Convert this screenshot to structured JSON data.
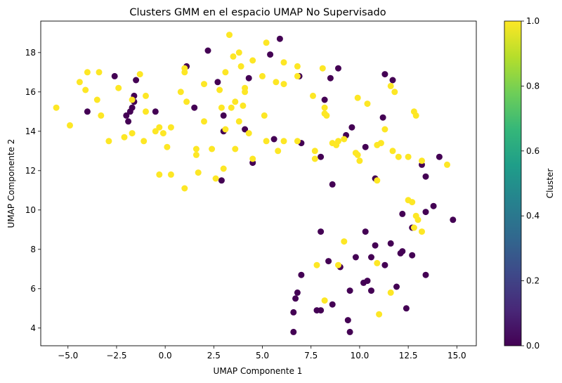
{
  "chart_data": {
    "type": "scatter",
    "title": "Clusters GMM en el espacio UMAP No Supervisado",
    "xlabel": "UMAP Componente 1",
    "ylabel": "UMAP Componente 2",
    "xlim": [
      -6.4,
      16.0
    ],
    "ylim": [
      3.1,
      19.6
    ],
    "xticks": [
      -5.0,
      -2.5,
      0.0,
      2.5,
      5.0,
      7.5,
      10.0,
      12.5,
      15.0
    ],
    "xtick_labels": [
      "−5.0",
      "−2.5",
      "0.0",
      "2.5",
      "5.0",
      "7.5",
      "10.0",
      "12.5",
      "15.0"
    ],
    "yticks": [
      4,
      6,
      8,
      10,
      12,
      14,
      16,
      18
    ],
    "ytick_labels": [
      "4",
      "6",
      "8",
      "10",
      "12",
      "14",
      "16",
      "18"
    ],
    "grid": false,
    "colorbar": {
      "label": "Cluster",
      "min": 0.0,
      "max": 1.0,
      "ticks": [
        0.0,
        0.2,
        0.4,
        0.6,
        0.8,
        1.0
      ],
      "tick_labels": [
        "0.0",
        "0.2",
        "0.4",
        "0.6",
        "0.8",
        "1.0"
      ],
      "colormap": "viridis",
      "stops": [
        "#440154",
        "#482878",
        "#3e4989",
        "#31688e",
        "#26828e",
        "#1f9e89",
        "#35b779",
        "#6ece58",
        "#b5de2b",
        "#fde725"
      ]
    },
    "colors": {
      "cluster_0": "#440154",
      "cluster_1": "#fde725"
    },
    "series": [
      {
        "cluster": 0,
        "points": [
          [
            -4.0,
            15.0
          ],
          [
            -2.6,
            16.8
          ],
          [
            -2.0,
            14.8
          ],
          [
            -1.9,
            14.5
          ],
          [
            -1.8,
            15.0
          ],
          [
            -1.7,
            15.2
          ],
          [
            -1.6,
            15.8
          ],
          [
            -1.5,
            16.6
          ],
          [
            -1.6,
            15.5
          ],
          [
            -0.5,
            15.0
          ],
          [
            1.1,
            17.3
          ],
          [
            1.5,
            15.2
          ],
          [
            2.2,
            18.1
          ],
          [
            2.7,
            16.5
          ],
          [
            3.0,
            14.8
          ],
          [
            3.0,
            14.0
          ],
          [
            2.9,
            11.5
          ],
          [
            4.1,
            14.1
          ],
          [
            4.3,
            16.7
          ],
          [
            4.5,
            12.4
          ],
          [
            5.4,
            17.9
          ],
          [
            5.6,
            13.6
          ],
          [
            5.9,
            18.7
          ],
          [
            6.9,
            16.8
          ],
          [
            7.0,
            13.4
          ],
          [
            8.0,
            12.7
          ],
          [
            8.2,
            15.6
          ],
          [
            8.5,
            16.7
          ],
          [
            8.6,
            11.3
          ],
          [
            8.9,
            17.2
          ],
          [
            9.3,
            13.8
          ],
          [
            9.6,
            14.2
          ],
          [
            10.3,
            13.2
          ],
          [
            10.8,
            11.6
          ],
          [
            11.2,
            14.7
          ],
          [
            11.3,
            16.9
          ],
          [
            11.7,
            16.6
          ],
          [
            12.2,
            9.8
          ],
          [
            12.7,
            9.1
          ],
          [
            13.2,
            12.3
          ],
          [
            13.4,
            11.7
          ],
          [
            13.4,
            9.9
          ],
          [
            13.8,
            10.2
          ],
          [
            14.1,
            12.7
          ],
          [
            14.8,
            9.5
          ],
          [
            6.6,
            3.8
          ],
          [
            6.6,
            4.8
          ],
          [
            6.7,
            5.5
          ],
          [
            6.8,
            5.8
          ],
          [
            7.0,
            6.7
          ],
          [
            7.8,
            4.9
          ],
          [
            8.0,
            4.9
          ],
          [
            8.0,
            8.9
          ],
          [
            8.4,
            7.4
          ],
          [
            8.6,
            5.2
          ],
          [
            9.0,
            7.1
          ],
          [
            9.4,
            4.4
          ],
          [
            9.5,
            3.8
          ],
          [
            9.5,
            5.9
          ],
          [
            9.8,
            7.6
          ],
          [
            10.2,
            6.3
          ],
          [
            10.3,
            8.9
          ],
          [
            10.4,
            6.4
          ],
          [
            10.6,
            7.6
          ],
          [
            10.6,
            5.9
          ],
          [
            10.8,
            8.2
          ],
          [
            11.3,
            7.2
          ],
          [
            11.6,
            8.3
          ],
          [
            11.9,
            6.1
          ],
          [
            12.1,
            7.8
          ],
          [
            12.2,
            7.9
          ],
          [
            12.4,
            5.0
          ],
          [
            12.7,
            7.7
          ],
          [
            13.4,
            6.7
          ]
        ]
      },
      {
        "cluster": 1,
        "points": [
          [
            -5.6,
            15.2
          ],
          [
            -4.9,
            14.3
          ],
          [
            -4.4,
            16.5
          ],
          [
            -4.0,
            17.0
          ],
          [
            -4.1,
            16.1
          ],
          [
            -3.4,
            17.0
          ],
          [
            -3.5,
            15.6
          ],
          [
            -3.3,
            14.8
          ],
          [
            -2.9,
            13.5
          ],
          [
            -2.4,
            16.2
          ],
          [
            -2.1,
            13.7
          ],
          [
            -1.7,
            15.6
          ],
          [
            -1.7,
            13.9
          ],
          [
            -1.3,
            16.9
          ],
          [
            -1.0,
            15.8
          ],
          [
            -1.0,
            15.0
          ],
          [
            -1.1,
            13.5
          ],
          [
            -0.5,
            14.0
          ],
          [
            -0.3,
            14.2
          ],
          [
            -0.3,
            11.8
          ],
          [
            -0.1,
            13.9
          ],
          [
            0.1,
            13.2
          ],
          [
            0.3,
            11.8
          ],
          [
            0.3,
            14.2
          ],
          [
            0.8,
            16.0
          ],
          [
            1.0,
            17.0
          ],
          [
            1.0,
            17.2
          ],
          [
            1.0,
            11.1
          ],
          [
            1.1,
            15.5
          ],
          [
            1.6,
            13.1
          ],
          [
            1.6,
            12.8
          ],
          [
            1.7,
            11.9
          ],
          [
            2.0,
            14.5
          ],
          [
            2.0,
            16.4
          ],
          [
            2.4,
            13.1
          ],
          [
            2.6,
            11.6
          ],
          [
            2.8,
            16.1
          ],
          [
            2.9,
            15.2
          ],
          [
            3.1,
            17.0
          ],
          [
            3.0,
            12.1
          ],
          [
            3.1,
            14.1
          ],
          [
            3.3,
            18.9
          ],
          [
            3.4,
            15.2
          ],
          [
            3.5,
            17.8
          ],
          [
            3.6,
            15.5
          ],
          [
            3.6,
            13.1
          ],
          [
            3.8,
            18.0
          ],
          [
            3.8,
            14.5
          ],
          [
            3.9,
            17.3
          ],
          [
            4.0,
            15.3
          ],
          [
            4.1,
            16.0
          ],
          [
            4.1,
            16.2
          ],
          [
            4.3,
            13.9
          ],
          [
            4.5,
            17.6
          ],
          [
            4.5,
            12.6
          ],
          [
            5.0,
            16.8
          ],
          [
            5.2,
            18.5
          ],
          [
            5.1,
            14.8
          ],
          [
            5.2,
            13.5
          ],
          [
            5.7,
            16.5
          ],
          [
            5.8,
            13.0
          ],
          [
            6.1,
            17.5
          ],
          [
            6.1,
            16.4
          ],
          [
            6.1,
            13.5
          ],
          [
            6.8,
            16.8
          ],
          [
            6.8,
            17.3
          ],
          [
            6.8,
            13.5
          ],
          [
            7.6,
            15.8
          ],
          [
            7.7,
            13.0
          ],
          [
            7.7,
            12.6
          ],
          [
            8.1,
            17.2
          ],
          [
            8.2,
            15.2
          ],
          [
            8.2,
            14.9
          ],
          [
            8.3,
            14.8
          ],
          [
            8.6,
            13.4
          ],
          [
            8.8,
            13.3
          ],
          [
            8.9,
            13.5
          ],
          [
            9.2,
            13.6
          ],
          [
            9.8,
            12.9
          ],
          [
            9.9,
            12.8
          ],
          [
            9.9,
            15.7
          ],
          [
            10.0,
            12.5
          ],
          [
            10.4,
            15.4
          ],
          [
            10.9,
            13.3
          ],
          [
            11.1,
            13.4
          ],
          [
            11.3,
            14.1
          ],
          [
            11.6,
            16.3
          ],
          [
            11.7,
            13.0
          ],
          [
            11.8,
            16.0
          ],
          [
            12.0,
            12.7
          ],
          [
            12.5,
            12.7
          ],
          [
            12.5,
            10.5
          ],
          [
            12.7,
            10.4
          ],
          [
            12.8,
            15.0
          ],
          [
            12.9,
            14.8
          ],
          [
            12.8,
            9.1
          ],
          [
            12.9,
            9.7
          ],
          [
            13.0,
            9.5
          ],
          [
            13.2,
            12.5
          ],
          [
            13.2,
            8.9
          ],
          [
            14.5,
            12.3
          ],
          [
            7.8,
            7.2
          ],
          [
            8.9,
            7.2
          ],
          [
            9.2,
            8.4
          ],
          [
            10.9,
            7.3
          ],
          [
            10.9,
            11.5
          ],
          [
            11.0,
            4.7
          ],
          [
            8.2,
            5.4
          ],
          [
            11.6,
            5.8
          ]
        ]
      }
    ]
  }
}
